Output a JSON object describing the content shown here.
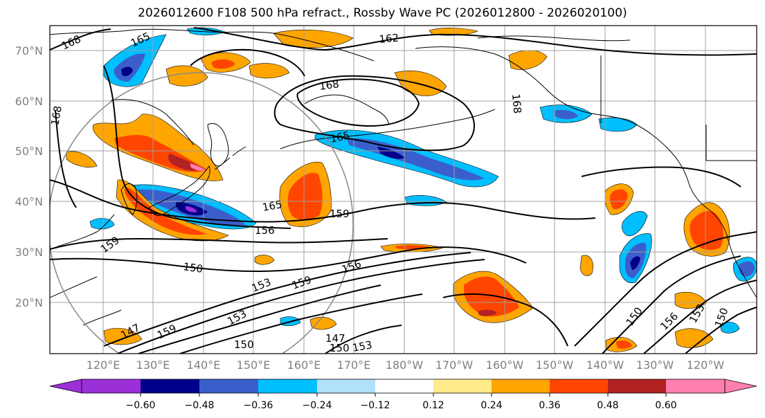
{
  "title": "2026012600 F108 500 hPa refract., Rossby Wave PC (2026012800 - 2026020100)",
  "colors": {
    "frame": "#000000",
    "grid": "#a0a0a0",
    "coast": "#000000",
    "contour": "#000000",
    "circle": "#888888"
  },
  "lat_ticks": [
    "70°N",
    "60°N",
    "50°N",
    "40°N",
    "30°N",
    "20°N"
  ],
  "lon_ticks": [
    "120°E",
    "130°E",
    "140°E",
    "150°E",
    "160°E",
    "170°E",
    "180°W",
    "170°W",
    "160°W",
    "150°W",
    "140°W",
    "130°W",
    "120°W"
  ],
  "contour_labels": [
    "168",
    "165",
    "162",
    "168",
    "165",
    "168",
    "165",
    "159",
    "156",
    "150",
    "159",
    "156",
    "153",
    "159",
    "153",
    "147",
    "159",
    "150",
    "147",
    "150",
    "153",
    "150",
    "156",
    "153",
    "150",
    "168"
  ],
  "colorbar": {
    "ticks": [
      "−0.60",
      "−0.48",
      "−0.36",
      "−0.24",
      "−0.12",
      "0.12",
      "0.24",
      "0.36",
      "0.48",
      "0.60"
    ],
    "colors": [
      "#9b30d8",
      "#00008b",
      "#3a5fcd",
      "#00bfff",
      "#b2e1fa",
      "#ffffff",
      "#ffeb8c",
      "#ffa500",
      "#ff4500",
      "#b22222",
      "#ff7faf"
    ]
  }
}
